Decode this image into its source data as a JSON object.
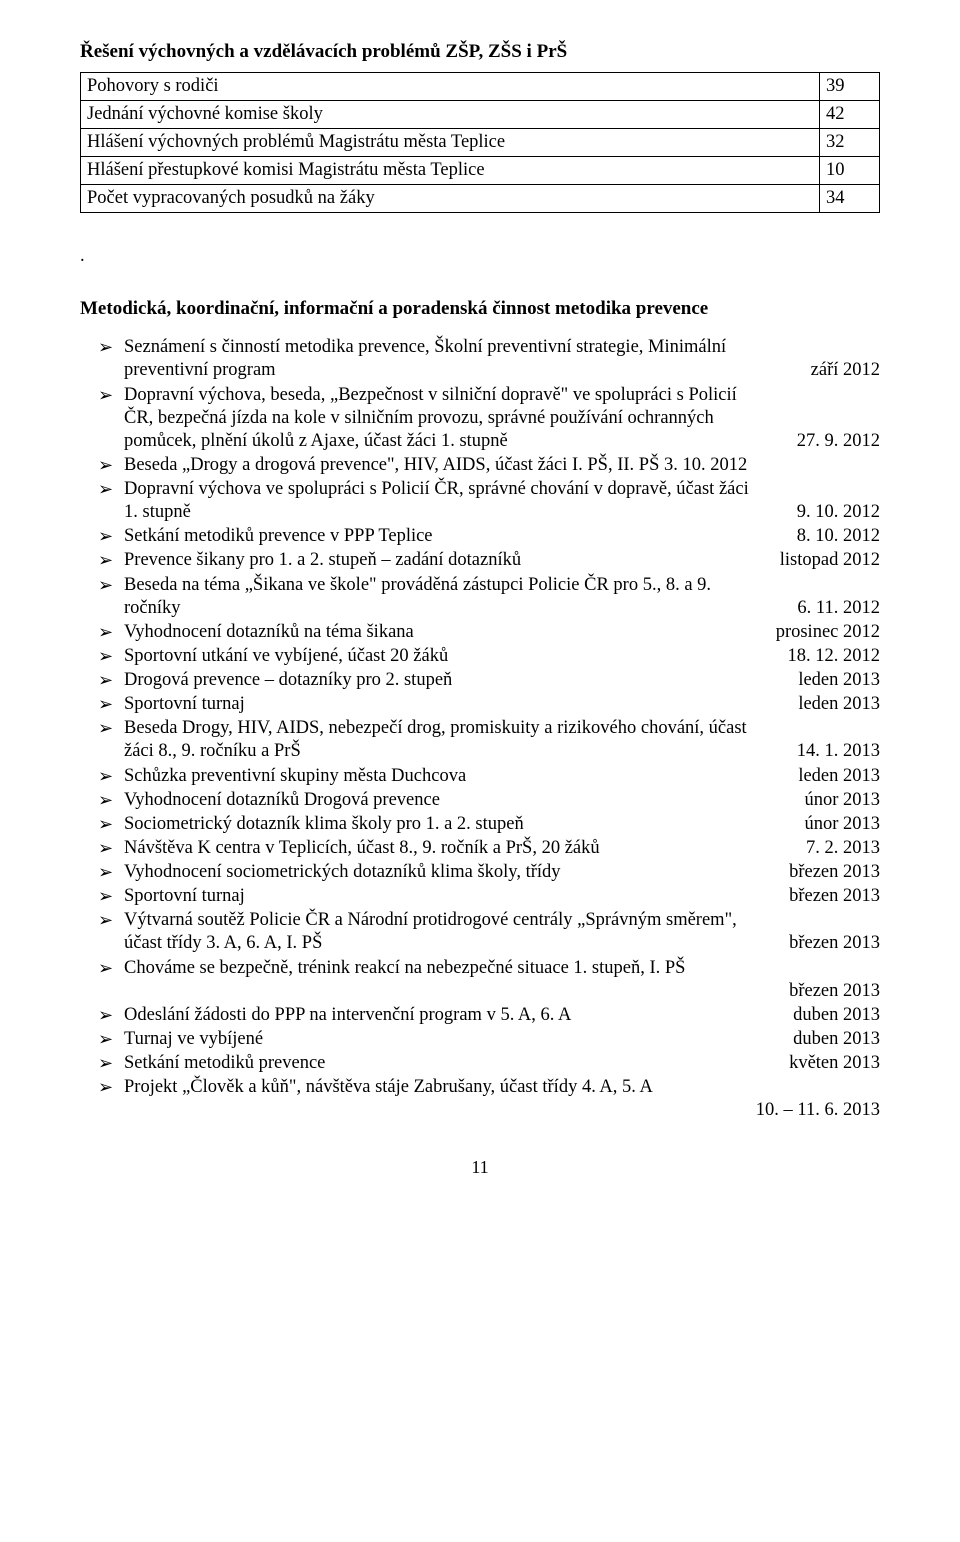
{
  "title": "Řešení výchovných a vzdělávacích problémů ZŠP, ZŠS i PrŠ",
  "table": {
    "rows": [
      [
        "Pohovory s rodiči",
        "39"
      ],
      [
        "Jednání výchovné komise školy",
        "42"
      ],
      [
        "Hlášení výchovných problémů Magistrátu města Teplice",
        "32"
      ],
      [
        "Hlášení přestupkové komisi Magistrátu města Teplice",
        "10"
      ],
      [
        "Počet vypracovaných posudků na žáky",
        "34"
      ]
    ]
  },
  "period": ".",
  "section_heading": "Metodická, koordinační, informační a poradenská činnost metodika prevence",
  "items": [
    {
      "lines": [
        {
          "t": "Seznámení s činností metodika prevence, Školní preventivní strategie, Minimální"
        },
        {
          "t": "preventivní program",
          "r": "září 2012"
        }
      ]
    },
    {
      "lines": [
        {
          "t": "Dopravní výchova, beseda, „Bezpečnost v silniční dopravě\" ve spolupráci s Policií"
        },
        {
          "t": "ČR, bezpečná jízda na kole v silničním provozu, správné používání ochranných"
        },
        {
          "t": "pomůcek, plnění úkolů z Ajaxe, účast žáci 1. stupně",
          "r": "27. 9. 2012"
        }
      ]
    },
    {
      "lines": [
        {
          "t": "Beseda „Drogy a drogová prevence\", HIV, AIDS, účast žáci I. PŠ, II. PŠ  3. 10. 2012"
        }
      ]
    },
    {
      "lines": [
        {
          "t": "Dopravní výchova ve spolupráci s Policií ČR, správné chování v dopravě, účast žáci"
        },
        {
          "t": "1. stupně",
          "r": "9. 10. 2012"
        }
      ]
    },
    {
      "lines": [
        {
          "t": "Setkání metodiků prevence v PPP Teplice",
          "r": "8. 10. 2012"
        }
      ]
    },
    {
      "lines": [
        {
          "t": "Prevence šikany pro 1. a 2. stupeň – zadání dotazníků",
          "r": "listopad 2012"
        }
      ]
    },
    {
      "lines": [
        {
          "t": "Beseda na téma „Šikana ve škole\" prováděná zástupci Policie ČR pro 5., 8. a 9."
        },
        {
          "t": "ročníky",
          "r": "6. 11. 2012"
        }
      ]
    },
    {
      "lines": [
        {
          "t": "Vyhodnocení dotazníků na téma šikana",
          "r": "prosinec 2012"
        }
      ]
    },
    {
      "lines": [
        {
          "t": "Sportovní utkání ve vybíjené, účast 20 žáků",
          "r": "18. 12. 2012"
        }
      ]
    },
    {
      "lines": [
        {
          "t": "Drogová prevence – dotazníky pro 2. stupeň",
          "r": "leden 2013"
        }
      ]
    },
    {
      "lines": [
        {
          "t": "Sportovní turnaj",
          "r": "leden 2013"
        }
      ]
    },
    {
      "lines": [
        {
          "t": "Beseda Drogy, HIV, AIDS, nebezpečí drog, promiskuity a rizikového chování, účast"
        },
        {
          "t": "žáci 8., 9. ročníku a PrŠ",
          "r": "14. 1. 2013"
        }
      ]
    },
    {
      "lines": [
        {
          "t": "Schůzka preventivní skupiny města Duchcova",
          "r": "leden 2013"
        }
      ]
    },
    {
      "lines": [
        {
          "t": "Vyhodnocení dotazníků Drogová prevence",
          "r": "únor 2013"
        }
      ]
    },
    {
      "lines": [
        {
          "t": "Sociometrický dotazník klima školy pro 1. a 2. stupeň",
          "r": "únor 2013"
        }
      ]
    },
    {
      "lines": [
        {
          "t": "Návštěva K centra v Teplicích, účast 8., 9. ročník a PrŠ, 20 žáků",
          "r": "7. 2. 2013"
        }
      ]
    },
    {
      "lines": [
        {
          "t": "Vyhodnocení sociometrických dotazníků klima školy, třídy",
          "r": "březen 2013"
        }
      ]
    },
    {
      "lines": [
        {
          "t": "Sportovní turnaj",
          "r": "březen 2013"
        }
      ]
    },
    {
      "lines": [
        {
          "t": "Výtvarná soutěž Policie ČR a Národní protidrogové centrály „Správným směrem\","
        },
        {
          "t": "účast třídy 3. A, 6. A, I. PŠ",
          "r": "březen 2013"
        }
      ]
    },
    {
      "lines": [
        {
          "t": "Chováme se bezpečně, trénink reakcí na nebezpečné situace 1. stupeň, I. PŠ"
        },
        {
          "t": "",
          "r": "březen 2013"
        }
      ]
    },
    {
      "lines": [
        {
          "t": "Odeslání žádosti do PPP na intervenční program v 5. A, 6. A",
          "r": "duben 2013"
        }
      ]
    },
    {
      "lines": [
        {
          "t": "Turnaj ve vybíjené",
          "r": "duben 2013"
        }
      ]
    },
    {
      "lines": [
        {
          "t": "Setkání metodiků prevence",
          "r": "květen 2013"
        }
      ]
    },
    {
      "lines": [
        {
          "t": "Projekt „Člověk a kůň\", návštěva stáje Zabrušany, účast třídy 4. A, 5. A"
        },
        {
          "t": "",
          "r": "10. – 11. 6. 2013"
        }
      ]
    }
  ],
  "page_number": "11"
}
